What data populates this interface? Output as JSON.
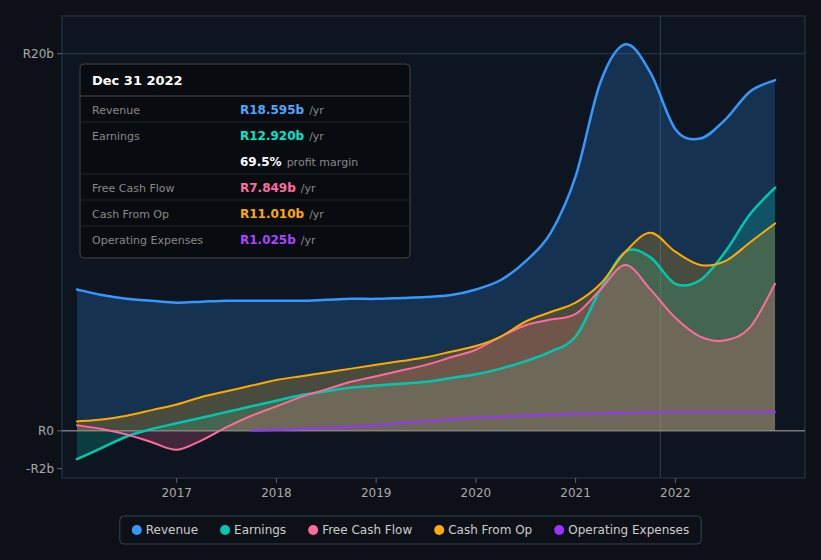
{
  "chart_data": {
    "type": "line",
    "xlim": [
      2015.85,
      2023.3
    ],
    "ylim": [
      -2.5,
      22
    ],
    "xticks": [
      2017,
      2018,
      2019,
      2020,
      2021,
      2022
    ],
    "yticks": [
      {
        "value": -2,
        "label": "-R2b"
      },
      {
        "value": 0,
        "label": "R0"
      },
      {
        "value": 20,
        "label": "R20b"
      }
    ],
    "grid": false,
    "legend": "bottom",
    "series": [
      {
        "name": "Revenue",
        "type": "area",
        "color": "#3399ff",
        "x": [
          2016.0,
          2016.25,
          2016.5,
          2016.75,
          2017.0,
          2017.25,
          2017.5,
          2017.75,
          2018.0,
          2018.25,
          2018.5,
          2018.75,
          2019.0,
          2019.25,
          2019.5,
          2019.75,
          2020.0,
          2020.25,
          2020.5,
          2020.75,
          2021.0,
          2021.25,
          2021.5,
          2021.75,
          2022.0,
          2022.25,
          2022.5,
          2022.75,
          2023.0
        ],
        "values": [
          7.5,
          7.2,
          7.0,
          6.9,
          6.8,
          6.85,
          6.9,
          6.9,
          6.9,
          6.9,
          6.95,
          7.0,
          7.0,
          7.05,
          7.1,
          7.2,
          7.5,
          8.0,
          9.0,
          10.5,
          13.5,
          18.5,
          20.5,
          19.0,
          16.0,
          15.5,
          16.5,
          18.0,
          18.6
        ]
      },
      {
        "name": "Earnings",
        "type": "area",
        "color": "#00c8b0",
        "x": [
          2016.0,
          2016.25,
          2016.5,
          2016.75,
          2017.0,
          2017.25,
          2017.5,
          2017.75,
          2018.0,
          2018.25,
          2018.5,
          2018.75,
          2019.0,
          2019.25,
          2019.5,
          2019.75,
          2020.0,
          2020.25,
          2020.5,
          2020.75,
          2021.0,
          2021.25,
          2021.5,
          2021.75,
          2022.0,
          2022.25,
          2022.5,
          2022.75,
          2023.0
        ],
        "values": [
          -1.5,
          -0.9,
          -0.3,
          0.1,
          0.4,
          0.7,
          1.0,
          1.3,
          1.6,
          1.9,
          2.1,
          2.3,
          2.4,
          2.5,
          2.6,
          2.8,
          3.0,
          3.3,
          3.7,
          4.2,
          5.0,
          7.5,
          9.5,
          9.2,
          7.8,
          8.0,
          9.5,
          11.5,
          12.9
        ]
      },
      {
        "name": "Free Cash Flow",
        "type": "area",
        "color": "#ff6b9d",
        "x": [
          2016.0,
          2016.25,
          2016.5,
          2016.75,
          2017.0,
          2017.25,
          2017.5,
          2017.75,
          2018.0,
          2018.25,
          2018.5,
          2018.75,
          2019.0,
          2019.25,
          2019.5,
          2019.75,
          2020.0,
          2020.25,
          2020.5,
          2020.75,
          2021.0,
          2021.25,
          2021.5,
          2021.75,
          2022.0,
          2022.25,
          2022.5,
          2022.75,
          2023.0
        ],
        "values": [
          0.3,
          0.1,
          -0.2,
          -0.6,
          -1.0,
          -0.5,
          0.2,
          0.8,
          1.3,
          1.8,
          2.2,
          2.6,
          2.9,
          3.2,
          3.5,
          3.9,
          4.3,
          5.0,
          5.6,
          5.9,
          6.2,
          7.5,
          8.8,
          7.5,
          6.0,
          5.0,
          4.8,
          5.5,
          7.8
        ]
      },
      {
        "name": "Cash From Op",
        "type": "area",
        "color": "#ffaa00",
        "x": [
          2016.0,
          2016.25,
          2016.5,
          2016.75,
          2017.0,
          2017.25,
          2017.5,
          2017.75,
          2018.0,
          2018.25,
          2018.5,
          2018.75,
          2019.0,
          2019.25,
          2019.5,
          2019.75,
          2020.0,
          2020.25,
          2020.5,
          2020.75,
          2021.0,
          2021.25,
          2021.5,
          2021.75,
          2022.0,
          2022.25,
          2022.5,
          2022.75,
          2023.0
        ],
        "values": [
          0.5,
          0.6,
          0.8,
          1.1,
          1.4,
          1.8,
          2.1,
          2.4,
          2.7,
          2.9,
          3.1,
          3.3,
          3.5,
          3.7,
          3.9,
          4.2,
          4.5,
          5.0,
          5.8,
          6.3,
          6.8,
          7.8,
          9.5,
          10.5,
          9.5,
          8.8,
          9.0,
          10.0,
          11.0
        ]
      },
      {
        "name": "Operating Expenses",
        "type": "line",
        "color": "#9933ff",
        "x": [
          2017.75,
          2018.0,
          2018.25,
          2018.5,
          2018.75,
          2019.0,
          2019.25,
          2019.5,
          2019.75,
          2020.0,
          2020.25,
          2020.5,
          2020.75,
          2021.0,
          2021.25,
          2021.5,
          2021.75,
          2022.0,
          2022.25,
          2022.5,
          2022.75,
          2023.0
        ],
        "values": [
          0.0,
          0.05,
          0.1,
          0.15,
          0.2,
          0.3,
          0.4,
          0.5,
          0.6,
          0.7,
          0.75,
          0.8,
          0.85,
          0.9,
          0.92,
          0.95,
          0.97,
          1.0,
          1.0,
          1.0,
          1.0,
          1.0
        ]
      }
    ],
    "reference_lines": [
      {
        "axis": "x",
        "value": 2021.85,
        "color": "#2a3a4a"
      },
      {
        "axis": "y",
        "value": 0,
        "color": "#aaaaaa"
      },
      {
        "axis": "y",
        "value": 20,
        "color": "#2a3a4a"
      }
    ],
    "info_box": {
      "title": "Dec 31 2022",
      "rows": [
        {
          "label": "Revenue",
          "value": "R18.595b",
          "suffix": "/yr",
          "color": "#4da6ff"
        },
        {
          "label": "Earnings",
          "value": "R12.920b",
          "suffix": "/yr",
          "color": "#00e5cc"
        },
        {
          "value": "69.5%",
          "suffix": "profit margin",
          "color": "#ffffff"
        },
        {
          "label": "Free Cash Flow",
          "value": "R7.849b",
          "suffix": "/yr",
          "color": "#ff6b9d"
        },
        {
          "label": "Cash From Op",
          "value": "R11.010b",
          "suffix": "/yr",
          "color": "#ffaa00"
        },
        {
          "label": "Operating Expenses",
          "value": "R1.025b",
          "suffix": "/yr",
          "color": "#aa44ff"
        }
      ]
    }
  }
}
